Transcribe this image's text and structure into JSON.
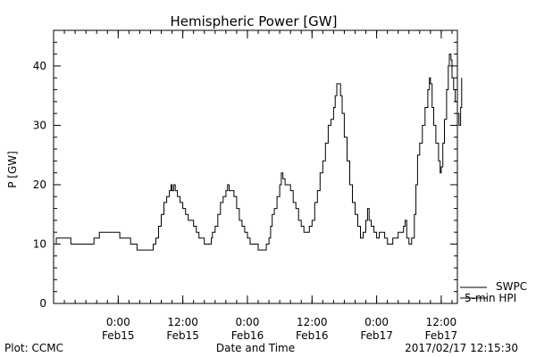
{
  "chart_data": {
    "type": "line",
    "title": "Hemispheric Power [GW]",
    "xlabel": "Date and Time",
    "ylabel": "P [GW]",
    "ylim": [
      0,
      46
    ],
    "yticks": [
      0,
      10,
      20,
      30,
      40
    ],
    "ytick_labels": [
      "0",
      "10",
      "20",
      "30",
      "40"
    ],
    "x_unit": "hours since start of plotted interval",
    "xlim": [
      0,
      75
    ],
    "xticks": [
      {
        "x": 12,
        "label1": "0:00",
        "label2": "Feb15"
      },
      {
        "x": 24,
        "label1": "12:00",
        "label2": "Feb15"
      },
      {
        "x": 36,
        "label1": "0:00",
        "label2": "Feb16"
      },
      {
        "x": 48,
        "label1": "12:00",
        "label2": "Feb16"
      },
      {
        "x": 60,
        "label1": "0:00",
        "label2": "Feb17"
      },
      {
        "x": 72,
        "label1": "12:00",
        "label2": "Feb17"
      }
    ],
    "minor_x_interval": 2,
    "minor_y_interval": 2,
    "grid": false,
    "legend": [
      {
        "name": "SWPC",
        "placement": "right-bottom"
      },
      {
        "name": "5-min HPI",
        "placement": "right-bottom"
      }
    ],
    "footer_left": "Plot: CCMC",
    "footer_right": "2017/02/17 12:15:30",
    "series": [
      {
        "name": "5-min HPI",
        "color": "#000000",
        "points": [
          [
            0,
            10
          ],
          [
            0.5,
            11
          ],
          [
            1,
            11
          ],
          [
            2,
            11
          ],
          [
            3,
            11
          ],
          [
            3.2,
            10
          ],
          [
            4,
            10
          ],
          [
            5,
            10
          ],
          [
            6,
            10
          ],
          [
            7,
            10
          ],
          [
            7.5,
            11
          ],
          [
            8,
            11
          ],
          [
            8.5,
            12
          ],
          [
            9,
            12
          ],
          [
            10,
            12
          ],
          [
            11,
            12
          ],
          [
            12,
            12
          ],
          [
            12.3,
            11
          ],
          [
            13,
            11
          ],
          [
            14,
            11
          ],
          [
            14.3,
            10
          ],
          [
            15,
            10
          ],
          [
            15.5,
            9
          ],
          [
            16,
            9
          ],
          [
            17,
            9
          ],
          [
            18,
            9
          ],
          [
            18.5,
            10
          ],
          [
            19,
            11
          ],
          [
            19.5,
            13
          ],
          [
            20,
            15
          ],
          [
            20.5,
            17
          ],
          [
            21,
            18
          ],
          [
            21.5,
            19
          ],
          [
            21.8,
            20
          ],
          [
            22,
            19
          ],
          [
            22.3,
            20
          ],
          [
            22.6,
            19
          ],
          [
            23,
            18
          ],
          [
            23.5,
            17
          ],
          [
            24,
            16
          ],
          [
            24.5,
            15
          ],
          [
            25,
            14
          ],
          [
            25.5,
            14
          ],
          [
            26,
            13
          ],
          [
            26.5,
            12
          ],
          [
            27,
            11
          ],
          [
            27.5,
            11
          ],
          [
            28,
            10
          ],
          [
            28.5,
            10
          ],
          [
            29,
            10
          ],
          [
            29.3,
            11
          ],
          [
            29.5,
            12
          ],
          [
            30,
            13
          ],
          [
            30.5,
            15
          ],
          [
            31,
            17
          ],
          [
            31.5,
            18
          ],
          [
            32,
            19
          ],
          [
            32.3,
            20
          ],
          [
            32.6,
            19
          ],
          [
            33,
            19
          ],
          [
            33.5,
            18
          ],
          [
            34,
            16
          ],
          [
            34.5,
            14
          ],
          [
            35,
            13
          ],
          [
            35.5,
            12
          ],
          [
            36,
            11
          ],
          [
            36.5,
            10
          ],
          [
            37,
            10
          ],
          [
            37.5,
            10
          ],
          [
            38,
            9
          ],
          [
            38.5,
            9
          ],
          [
            39,
            9
          ],
          [
            39.5,
            10
          ],
          [
            40,
            11
          ],
          [
            40.3,
            13
          ],
          [
            40.6,
            15
          ],
          [
            41,
            16
          ],
          [
            41.5,
            18
          ],
          [
            42,
            20
          ],
          [
            42.3,
            22
          ],
          [
            42.6,
            21
          ],
          [
            43,
            20
          ],
          [
            43.5,
            20
          ],
          [
            44,
            19
          ],
          [
            44.5,
            17
          ],
          [
            45,
            16
          ],
          [
            45.5,
            14
          ],
          [
            46,
            13
          ],
          [
            46.5,
            12
          ],
          [
            47,
            12
          ],
          [
            47.5,
            13
          ],
          [
            48,
            14
          ],
          [
            48.5,
            17
          ],
          [
            49,
            19
          ],
          [
            49.5,
            22
          ],
          [
            50,
            24
          ],
          [
            50.5,
            27
          ],
          [
            51,
            30
          ],
          [
            51.5,
            31
          ],
          [
            52,
            33
          ],
          [
            52.3,
            35
          ],
          [
            52.6,
            37
          ],
          [
            53,
            37
          ],
          [
            53.3,
            35
          ],
          [
            53.6,
            32
          ],
          [
            54,
            28
          ],
          [
            54.5,
            24
          ],
          [
            55,
            20
          ],
          [
            55.5,
            17
          ],
          [
            56,
            15
          ],
          [
            56.5,
            13
          ],
          [
            57,
            11
          ],
          [
            57.5,
            12
          ],
          [
            58,
            14
          ],
          [
            58.3,
            16
          ],
          [
            58.6,
            14
          ],
          [
            59,
            13
          ],
          [
            59.5,
            12
          ],
          [
            60,
            11
          ],
          [
            60.5,
            12
          ],
          [
            61,
            12
          ],
          [
            61.5,
            11
          ],
          [
            62,
            10
          ],
          [
            62.5,
            10
          ],
          [
            63,
            11
          ],
          [
            63.5,
            11
          ],
          [
            64,
            12
          ],
          [
            64.5,
            12
          ],
          [
            65,
            13
          ],
          [
            65.3,
            14
          ],
          [
            65.6,
            11
          ],
          [
            66,
            10
          ],
          [
            66.5,
            11
          ],
          [
            67,
            15
          ],
          [
            67.3,
            20
          ],
          [
            67.6,
            25
          ],
          [
            68,
            27
          ],
          [
            68.5,
            30
          ],
          [
            69,
            33
          ],
          [
            69.5,
            36
          ],
          [
            69.8,
            38
          ],
          [
            70,
            37
          ],
          [
            70.3,
            33
          ],
          [
            70.6,
            30
          ],
          [
            71,
            27
          ],
          [
            71.5,
            24
          ],
          [
            71.8,
            22
          ],
          [
            72,
            23
          ],
          [
            72.3,
            27
          ],
          [
            72.6,
            31
          ],
          [
            73,
            36
          ],
          [
            73.3,
            40
          ],
          [
            73.5,
            42
          ],
          [
            73.8,
            41
          ],
          [
            74,
            38
          ],
          [
            74.3,
            36
          ],
          [
            74.6,
            34
          ],
          [
            75,
            32
          ],
          [
            75.3,
            30
          ],
          [
            75.6,
            33
          ],
          [
            75.8,
            38
          ]
        ]
      }
    ]
  }
}
